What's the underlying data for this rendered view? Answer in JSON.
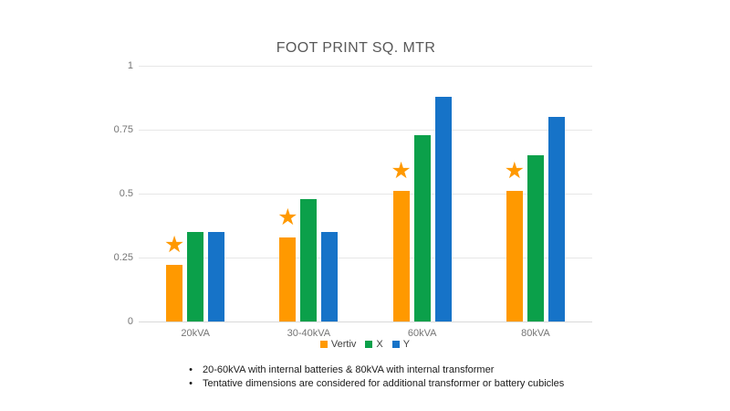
{
  "chart_data": {
    "type": "bar",
    "title": "FOOT PRINT SQ. MTR",
    "categories": [
      "20kVA",
      "30-40kVA",
      "60kVA",
      "80kVA"
    ],
    "series": [
      {
        "name": "Vertiv",
        "color": "#ff9900",
        "values": [
          0.22,
          0.33,
          0.51,
          0.51
        ]
      },
      {
        "name": "X",
        "color": "#0ba04a",
        "values": [
          0.35,
          0.48,
          0.73,
          0.65
        ]
      },
      {
        "name": "Y",
        "color": "#1673c8",
        "values": [
          0.35,
          0.35,
          0.88,
          0.8
        ]
      }
    ],
    "xlabel": "",
    "ylabel": "",
    "ylim": [
      0,
      1
    ],
    "yticks": [
      0,
      0.25,
      0.5,
      0.75,
      1
    ],
    "grid": true,
    "legend_position": "bottom",
    "annotations": {
      "glyph": "★",
      "color": "#ff9900",
      "above_series": "Vertiv",
      "categories": [
        "20kVA",
        "30-40kVA",
        "60kVA",
        "80kVA"
      ]
    }
  },
  "notes": {
    "bullet_glyph": "•",
    "items": [
      "20-60kVA with internal batteries & 80kVA with internal transformer",
      "Tentative dimensions are considered for additional transformer or battery cubicles"
    ]
  }
}
